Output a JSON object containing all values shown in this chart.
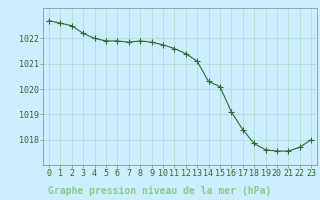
{
  "x": [
    0,
    1,
    2,
    3,
    4,
    5,
    6,
    7,
    8,
    9,
    10,
    11,
    12,
    13,
    14,
    15,
    16,
    17,
    18,
    19,
    20,
    21,
    22,
    23
  ],
  "y": [
    1022.7,
    1022.6,
    1022.5,
    1022.2,
    1022.0,
    1021.9,
    1021.9,
    1021.85,
    1021.9,
    1021.85,
    1021.75,
    1021.6,
    1021.4,
    1021.1,
    1020.3,
    1020.1,
    1019.1,
    1018.4,
    1017.85,
    1017.6,
    1017.55,
    1017.55,
    1017.7,
    1018.0
  ],
  "line_color": "#2d6a2d",
  "marker": "+",
  "marker_size": 4,
  "marker_color": "#2d6a2d",
  "background_color": "#cceeff",
  "grid_color": "#aaddcc",
  "xlabel": "Graphe pression niveau de la mer (hPa)",
  "xlabel_fontsize": 7,
  "xlabel_color": "#2d6a2d",
  "ylabel_ticks": [
    1018,
    1019,
    1020,
    1021,
    1022
  ],
  "xlim": [
    -0.5,
    23.5
  ],
  "ylim": [
    1017.0,
    1023.2
  ],
  "tick_color": "#2d6a2d",
  "tick_fontsize": 6,
  "label_bg_color": "#335533",
  "label_text_color": "#88cc88"
}
